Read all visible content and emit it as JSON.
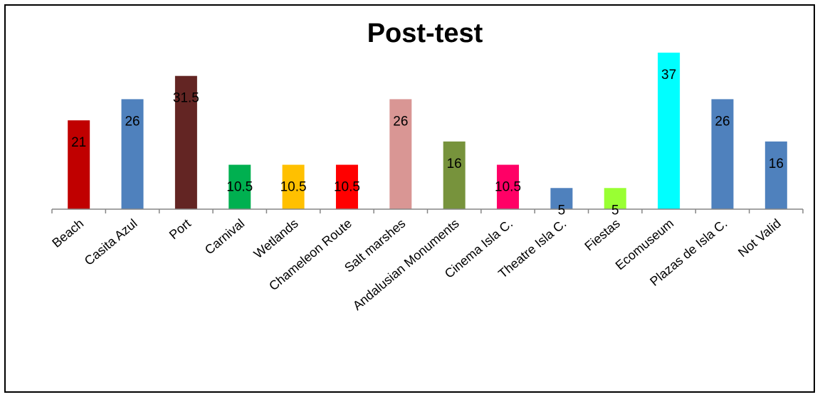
{
  "chart_data": {
    "type": "bar",
    "title": "Post-test",
    "categories": [
      "Beach",
      "Casita Azul",
      "Port",
      "Carnival",
      "Wetlands",
      "Chameleon Route",
      "Salt marshes",
      "Andalusian Monuments",
      "Cinema Isla C.",
      "Theatre Isla C.",
      "Fiestas",
      "Ecomuseum",
      "Plazas de Isla  C.",
      "Not Valid"
    ],
    "values": [
      21,
      26,
      31.5,
      10.5,
      10.5,
      10.5,
      26,
      16,
      10.5,
      5,
      5,
      37,
      26,
      16
    ],
    "labels": [
      "21",
      "26",
      "31.5",
      "10.5",
      "10.5",
      "10.5",
      "26",
      "16",
      "10.5",
      "5",
      "5",
      "37",
      "26",
      "16"
    ],
    "colors": [
      "#c00000",
      "#4f81bd",
      "#632523",
      "#00b050",
      "#ffc000",
      "#ff0000",
      "#d99694",
      "#77933c",
      "#ff0066",
      "#4f81bd",
      "#99ff33",
      "#00ffff",
      "#4f81bd",
      "#4f81bd"
    ],
    "ylim": [
      0,
      37
    ],
    "grid": false,
    "legend": "none"
  }
}
